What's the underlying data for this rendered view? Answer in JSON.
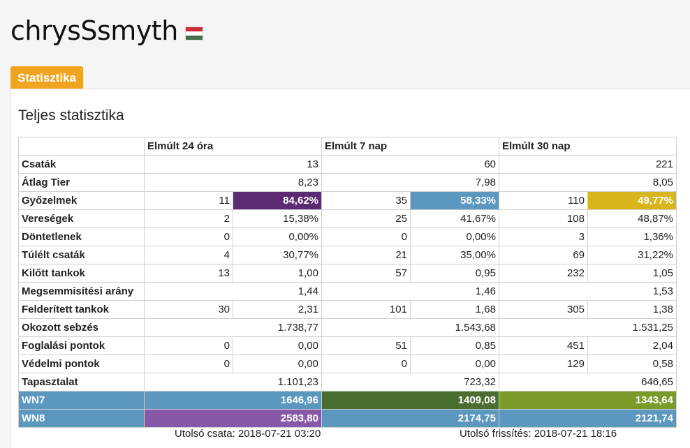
{
  "player": {
    "name": "chrysSsmyth",
    "flag_colors": [
      "#cd2a3e",
      "#ffffff",
      "#436f4d"
    ]
  },
  "tabs": [
    {
      "label": "Statisztika",
      "active": true
    }
  ],
  "panel_title": "Teljes statisztika",
  "columns": [
    "",
    "Elmúlt 24 óra",
    "Elmúlt 7 nap",
    "Elmúlt 30 nap"
  ],
  "rows": [
    {
      "label": "Csaták",
      "cells": [
        [
          "",
          "13"
        ],
        [
          "",
          "60"
        ],
        [
          "",
          "221"
        ]
      ],
      "merged": true
    },
    {
      "label": "Átlag Tier",
      "cells": [
        [
          "",
          "8,23"
        ],
        [
          "",
          "7,98"
        ],
        [
          "",
          "8,05"
        ]
      ],
      "merged": true
    },
    {
      "label": "Győzelmek",
      "cells": [
        [
          "11",
          "84,62%"
        ],
        [
          "35",
          "58,33%"
        ],
        [
          "110",
          "49,77%"
        ]
      ],
      "highlight": [
        "#5c2a72",
        "#5b97bf",
        "#d8b51c"
      ]
    },
    {
      "label": "Vereségek",
      "cells": [
        [
          "2",
          "15,38%"
        ],
        [
          "25",
          "41,67%"
        ],
        [
          "108",
          "48,87%"
        ]
      ]
    },
    {
      "label": "Döntetlenek",
      "cells": [
        [
          "0",
          "0,00%"
        ],
        [
          "0",
          "0,00%"
        ],
        [
          "3",
          "1,36%"
        ]
      ]
    },
    {
      "label": "Túlélt csaták",
      "cells": [
        [
          "4",
          "30,77%"
        ],
        [
          "21",
          "35,00%"
        ],
        [
          "69",
          "31,22%"
        ]
      ]
    },
    {
      "label": "Kilőtt tankok",
      "cells": [
        [
          "13",
          "1,00"
        ],
        [
          "57",
          "0,95"
        ],
        [
          "232",
          "1,05"
        ]
      ]
    },
    {
      "label": "Megsemmisítési arány",
      "cells": [
        [
          "",
          "1,44"
        ],
        [
          "",
          "1,46"
        ],
        [
          "",
          "1,53"
        ]
      ],
      "merged": true
    },
    {
      "label": "Felderített tankok",
      "cells": [
        [
          "30",
          "2,31"
        ],
        [
          "101",
          "1,68"
        ],
        [
          "305",
          "1,38"
        ]
      ]
    },
    {
      "label": "Okozott sebzés",
      "cells": [
        [
          "",
          "1.738,77"
        ],
        [
          "",
          "1.543,68"
        ],
        [
          "",
          "1.531,25"
        ]
      ],
      "merged": true
    },
    {
      "label": "Foglalási pontok",
      "cells": [
        [
          "0",
          "0,00"
        ],
        [
          "51",
          "0,85"
        ],
        [
          "451",
          "2,04"
        ]
      ]
    },
    {
      "label": "Védelmi pontok",
      "cells": [
        [
          "0",
          "0,00"
        ],
        [
          "0",
          "0,00"
        ],
        [
          "129",
          "0,58"
        ]
      ]
    },
    {
      "label": "Tapasztalat",
      "cells": [
        [
          "",
          "1.101,23"
        ],
        [
          "",
          "723,32"
        ],
        [
          "",
          "646,65"
        ]
      ],
      "merged": true
    },
    {
      "label": "WN7",
      "cells": [
        [
          "",
          "1646,96"
        ],
        [
          "",
          "1409,08"
        ],
        [
          "",
          "1343,64"
        ]
      ],
      "merged": true,
      "label_bg": "#5b97bf",
      "fill": [
        "#5b97bf",
        "#4a6e2f",
        "#7a9a2a"
      ]
    },
    {
      "label": "WN8",
      "cells": [
        [
          "",
          "2583,80"
        ],
        [
          "",
          "2174,75"
        ],
        [
          "",
          "2121,74"
        ]
      ],
      "merged": true,
      "label_bg": "#5b97bf",
      "fill": [
        "#8757a8",
        "#5b97bf",
        "#5b97bf"
      ]
    }
  ],
  "footer": {
    "last_battle": "Utolsó csata: 2018-07-21 03:20",
    "last_refresh": "Utolsó frissítés: 2018-07-21 18:16"
  }
}
